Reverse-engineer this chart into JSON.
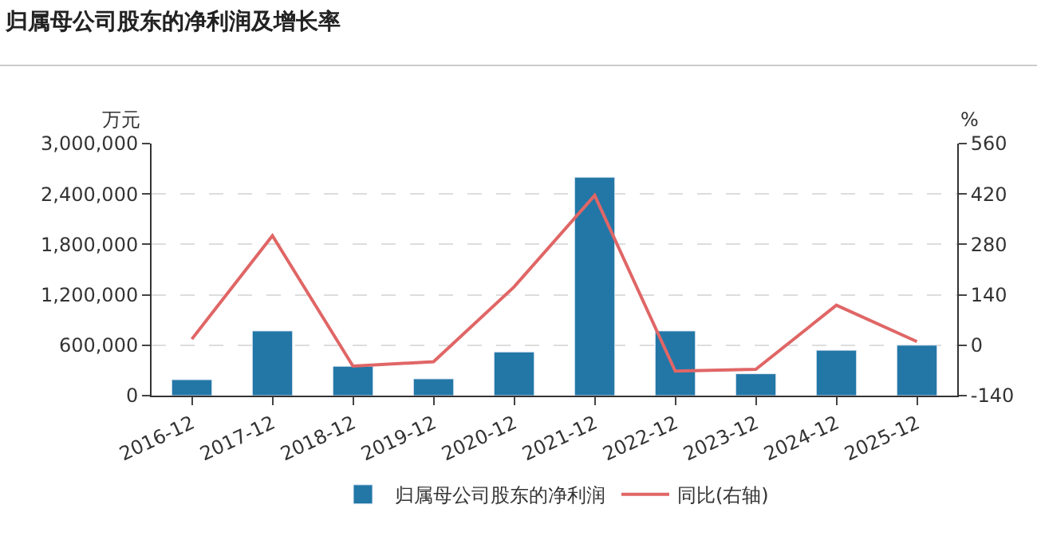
{
  "chart_data": {
    "type": "bar",
    "title": "归属母公司股东的净利润及增长率",
    "categories": [
      "2016-12",
      "2017-12",
      "2018-12",
      "2019-12",
      "2020-12",
      "2021-12",
      "2022-12",
      "2023-12",
      "2024-12",
      "2025-12"
    ],
    "series": [
      {
        "name": "归属母公司股东的净利润",
        "color": "#2277a7",
        "values": [
          190000,
          770000,
          350000,
          200000,
          520000,
          2600000,
          770000,
          260000,
          540000,
          600000
        ]
      },
      {
        "name": "同比(右轴)",
        "type": "line",
        "axis": "y2",
        "color": "#e06666",
        "values": [
          17,
          304,
          -58,
          -46,
          162,
          416,
          -72,
          -67,
          111,
          10
        ]
      }
    ],
    "ylabel": "万元",
    "y2label": "%",
    "ylim": [
      0,
      3000000
    ],
    "yticks": [
      {
        "value": 0,
        "label": "0"
      },
      {
        "value": 600000,
        "label": "600,000"
      },
      {
        "value": 1200000,
        "label": "1,200,000"
      },
      {
        "value": 1800000,
        "label": "1,800,000"
      },
      {
        "value": 2400000,
        "label": "2,400,000"
      },
      {
        "value": 3000000,
        "label": "3,000,000"
      }
    ],
    "y2lim": [
      -140,
      560
    ],
    "y2ticks": [
      -140,
      0,
      140,
      280,
      420,
      560
    ],
    "grid": "y",
    "legend": "bottom",
    "marker": "none"
  }
}
